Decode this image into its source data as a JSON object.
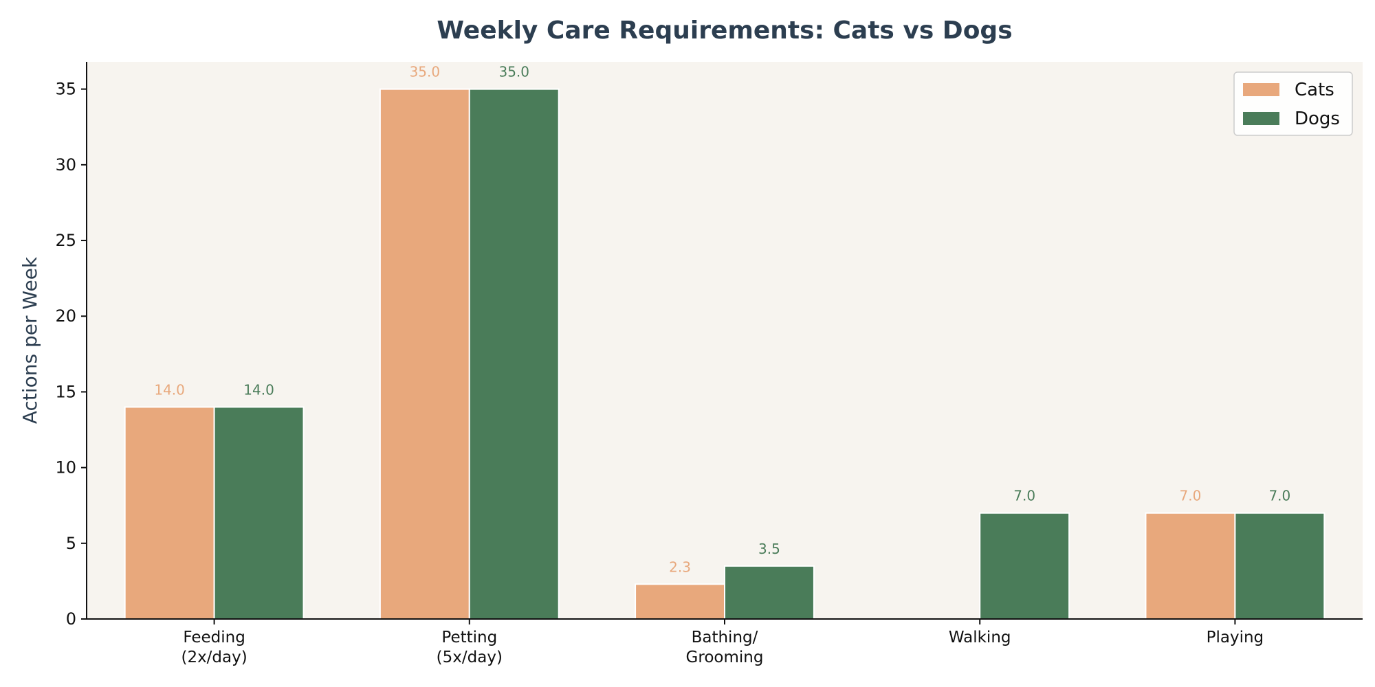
{
  "chart_data": {
    "type": "bar",
    "title": "Weekly Care Requirements: Cats vs Dogs",
    "xlabel": "",
    "ylabel": "Actions per Week",
    "categories": [
      [
        "Feeding",
        "(2x/day)"
      ],
      [
        "Petting",
        "(5x/day)"
      ],
      [
        "Bathing/",
        "Grooming"
      ],
      [
        "Walking"
      ],
      [
        "Playing"
      ]
    ],
    "series": [
      {
        "name": "Cats",
        "color": "#e8a87c",
        "values": [
          14.0,
          35.0,
          2.3,
          0,
          7.0
        ],
        "labels": [
          "14.0",
          "35.0",
          "2.3",
          "",
          "7.0"
        ]
      },
      {
        "name": "Dogs",
        "color": "#4a7c59",
        "values": [
          14.0,
          35.0,
          3.5,
          7.0,
          7.0
        ],
        "labels": [
          "14.0",
          "35.0",
          "3.5",
          "7.0",
          "7.0"
        ]
      }
    ],
    "ylim": [
      0,
      36.8
    ],
    "yticks": [
      0,
      5,
      10,
      15,
      20,
      25,
      30,
      35
    ],
    "grid": false,
    "legend_position": "top-right",
    "plot_background": "#f7f4ef"
  }
}
